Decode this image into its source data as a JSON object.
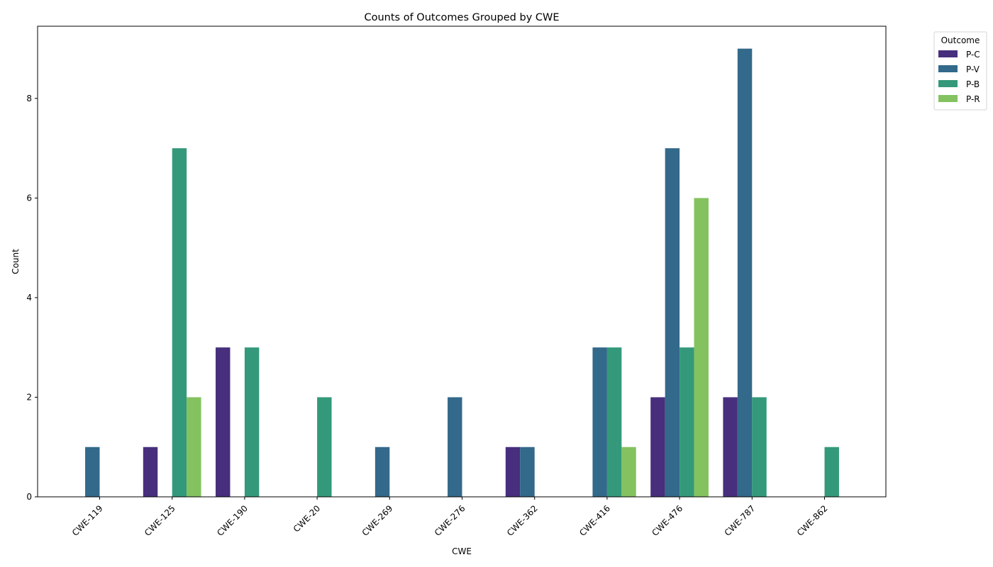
{
  "chart_data": {
    "type": "bar",
    "title": "Counts of Outcomes Grouped by CWE",
    "xlabel": "CWE",
    "ylabel": "Count",
    "ylim": [
      0,
      9.45
    ],
    "yticks": [
      0,
      2,
      4,
      6,
      8
    ],
    "grid": false,
    "legend": {
      "title": "Outcome",
      "placement": "outside-top-right"
    },
    "categories": [
      "CWE-119",
      "CWE-125",
      "CWE-190",
      "CWE-20",
      "CWE-269",
      "CWE-276",
      "CWE-362",
      "CWE-416",
      "CWE-476",
      "CWE-787",
      "CWE-862"
    ],
    "series": [
      {
        "name": "P-C",
        "color": "#472f7d",
        "values": [
          0,
          1,
          3,
          0,
          0,
          0,
          1,
          0,
          2,
          2,
          0
        ]
      },
      {
        "name": "P-V",
        "color": "#33698a",
        "values": [
          1,
          0,
          0,
          0,
          1,
          2,
          1,
          3,
          7,
          9,
          0
        ]
      },
      {
        "name": "P-B",
        "color": "#33997a",
        "values": [
          0,
          7,
          3,
          2,
          0,
          0,
          0,
          3,
          3,
          2,
          1
        ]
      },
      {
        "name": "P-R",
        "color": "#84c25f",
        "values": [
          0,
          2,
          0,
          0,
          0,
          0,
          0,
          1,
          6,
          0,
          0
        ]
      }
    ]
  }
}
